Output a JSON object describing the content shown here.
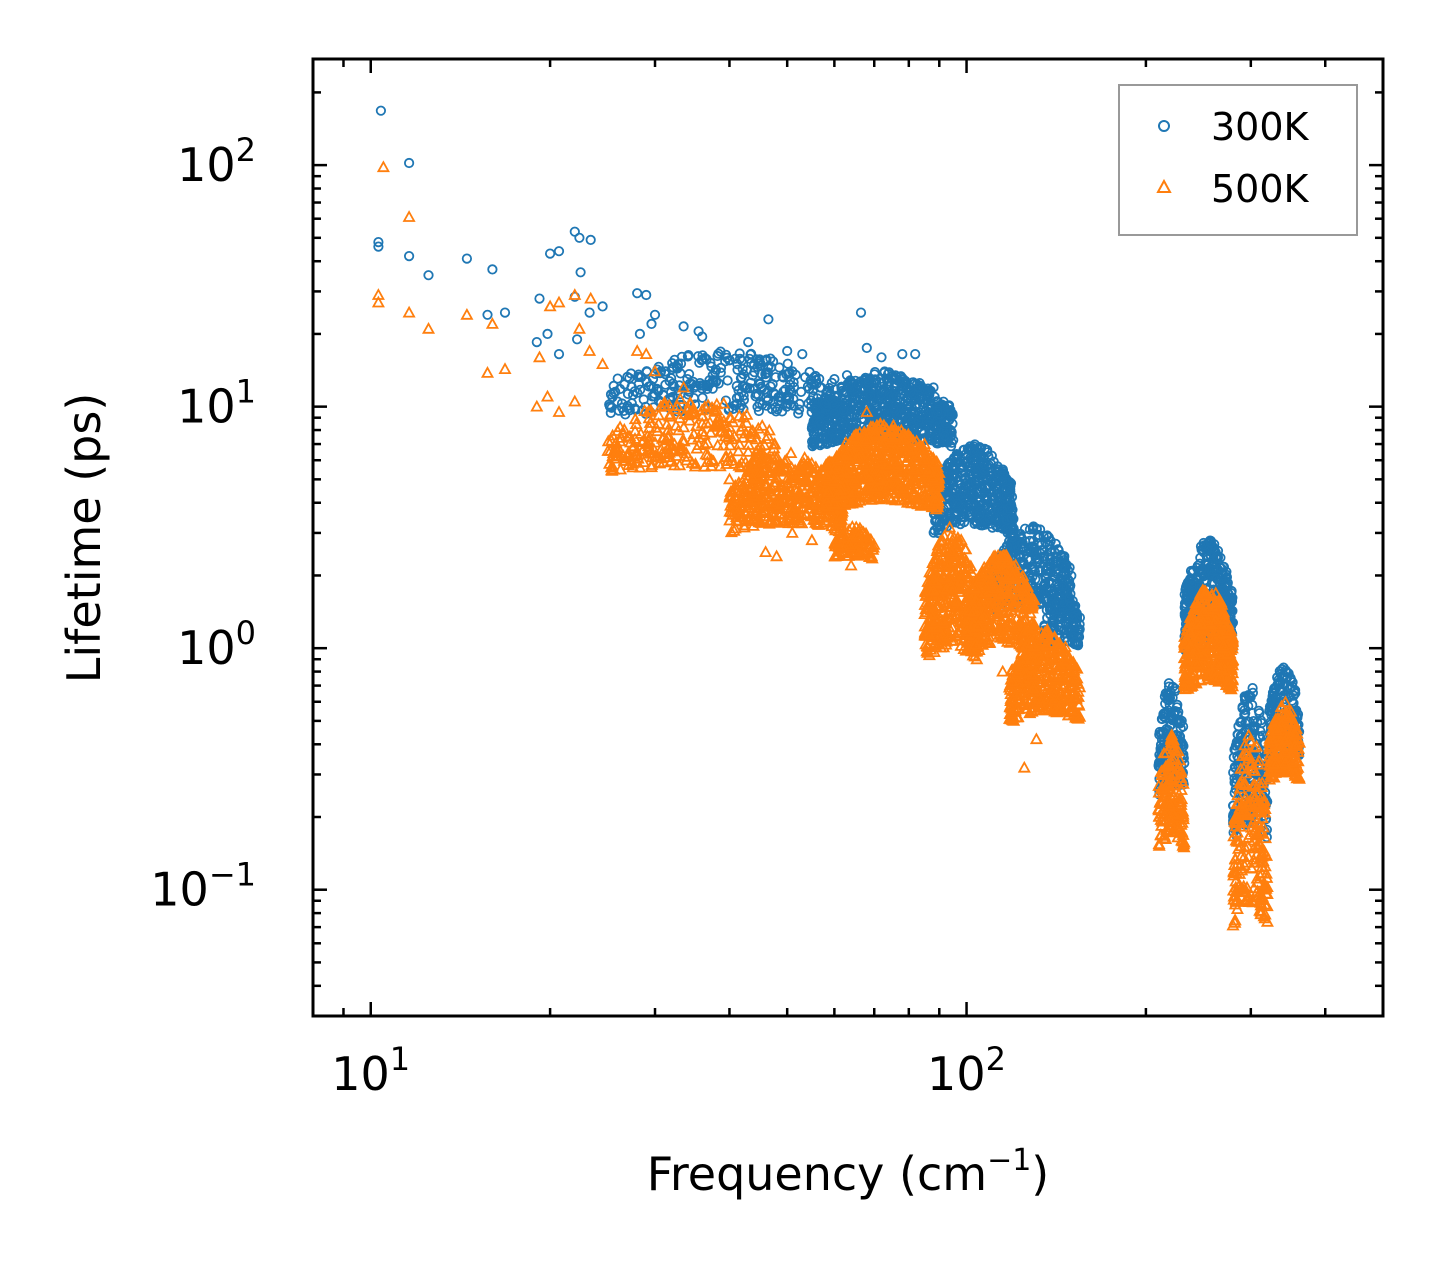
{
  "chart_data": {
    "type": "scatter",
    "title": "",
    "xlabel": "Frequency (cm",
    "xlabel_sup": "−1",
    "xlabel_end": ")",
    "ylabel": "Lifetime (ps)",
    "xscale": "log",
    "yscale": "log",
    "xlim": [
      8,
      500
    ],
    "ylim": [
      0.03,
      275
    ],
    "x_ticks": [
      {
        "base": "10",
        "exp": "1"
      },
      {
        "base": "10",
        "exp": "2"
      }
    ],
    "y_ticks": [
      {
        "base": "10",
        "exp": "−1"
      },
      {
        "base": "10",
        "exp": "0"
      },
      {
        "base": "10",
        "exp": "1"
      },
      {
        "base": "10",
        "exp": "2"
      }
    ],
    "legend_position": "top-right",
    "series": [
      {
        "name": "300K",
        "marker": "circle",
        "color": "#1f77b4",
        "points": [
          [
            10.3,
            48
          ],
          [
            10.3,
            46
          ],
          [
            10.4,
            168
          ],
          [
            11.6,
            102
          ],
          [
            11.6,
            42
          ],
          [
            12.5,
            35
          ],
          [
            14.5,
            41
          ],
          [
            15.7,
            24
          ],
          [
            16.0,
            37
          ],
          [
            16.8,
            24.5
          ],
          [
            19.0,
            18.5
          ],
          [
            19.2,
            28
          ],
          [
            19.8,
            20
          ],
          [
            20.0,
            43
          ],
          [
            20.7,
            44
          ],
          [
            20.7,
            16.5
          ],
          [
            22.0,
            28.5
          ],
          [
            22.0,
            53
          ],
          [
            22.4,
            50
          ],
          [
            22.5,
            36
          ],
          [
            22.2,
            19
          ],
          [
            23.4,
            49
          ],
          [
            23.3,
            24.5
          ],
          [
            24.5,
            26
          ],
          [
            28.0,
            29.5
          ],
          [
            28.3,
            20
          ],
          [
            29.0,
            29
          ],
          [
            29.6,
            22
          ],
          [
            30.0,
            24
          ],
          [
            33.5,
            21.5
          ],
          [
            34.0,
            13
          ],
          [
            35.5,
            20.5
          ],
          [
            36.0,
            19.5
          ],
          [
            37.5,
            13.5
          ],
          [
            43.0,
            18.5
          ],
          [
            44.0,
            15
          ],
          [
            46.5,
            23
          ],
          [
            50.0,
            17
          ],
          [
            51.0,
            14
          ],
          [
            53.0,
            16.5
          ],
          [
            57.0,
            12
          ],
          [
            60.0,
            13
          ],
          [
            63.0,
            13.5
          ],
          [
            66.5,
            24.5
          ],
          [
            68.0,
            17.5
          ],
          [
            72.0,
            16
          ],
          [
            75.0,
            13
          ],
          [
            78.0,
            16.5
          ],
          [
            82.0,
            16.5
          ],
          [
            88.0,
            12
          ]
        ],
        "clusters": [
          {
            "x": [
              25,
              60
            ],
            "y": [
              8,
              17
            ],
            "n": 320
          },
          {
            "x": [
              55,
              95
            ],
            "y": [
              6,
              14
            ],
            "n": 750
          },
          {
            "x": [
              88,
              120
            ],
            "y": [
              2.5,
              7
            ],
            "n": 500
          },
          {
            "x": [
              110,
              150
            ],
            "y": [
              1.2,
              3.2
            ],
            "n": 380
          },
          {
            "x": [
              135,
              155
            ],
            "y": [
              0.9,
              1.8
            ],
            "n": 160
          },
          {
            "x": [
              210,
              232
            ],
            "y": [
              0.2,
              0.75
            ],
            "n": 160
          },
          {
            "x": [
              232,
              280
            ],
            "y": [
              0.8,
              2.8
            ],
            "n": 450
          },
          {
            "x": [
              280,
              320
            ],
            "y": [
              0.12,
              0.7
            ],
            "n": 220
          },
          {
            "x": [
              322,
              362
            ],
            "y": [
              0.3,
              0.85
            ],
            "n": 200
          }
        ]
      },
      {
        "name": "500K",
        "marker": "triangle",
        "color": "#ff7f0e",
        "points": [
          [
            10.3,
            29
          ],
          [
            10.3,
            27
          ],
          [
            10.5,
            98
          ],
          [
            11.6,
            61
          ],
          [
            11.6,
            24.5
          ],
          [
            12.5,
            21
          ],
          [
            14.5,
            24
          ],
          [
            15.7,
            13.8
          ],
          [
            16.0,
            22
          ],
          [
            16.8,
            14.3
          ],
          [
            19.0,
            10
          ],
          [
            19.2,
            16
          ],
          [
            19.8,
            11
          ],
          [
            20.0,
            26
          ],
          [
            20.7,
            27
          ],
          [
            20.7,
            9.5
          ],
          [
            22.0,
            10.5
          ],
          [
            22.0,
            29
          ],
          [
            22.4,
            21
          ],
          [
            23.4,
            28
          ],
          [
            23.3,
            17
          ],
          [
            24.5,
            15
          ],
          [
            28.0,
            17
          ],
          [
            29.0,
            16.5
          ],
          [
            30.0,
            14
          ],
          [
            33.5,
            12
          ],
          [
            36.0,
            8.5
          ],
          [
            40.0,
            5
          ],
          [
            43.0,
            6.5
          ],
          [
            46.0,
            2.5
          ],
          [
            48.0,
            2.4
          ],
          [
            51.0,
            3
          ],
          [
            55.0,
            2.8
          ],
          [
            60.0,
            3.5
          ],
          [
            64.0,
            2.2
          ],
          [
            68.0,
            9.5
          ],
          [
            75.0,
            8
          ],
          [
            85.0,
            7
          ],
          [
            100.0,
            1.2
          ],
          [
            115.0,
            0.8
          ],
          [
            120.0,
            0.5
          ],
          [
            125.0,
            0.32
          ],
          [
            131.0,
            0.42
          ]
        ],
        "clusters": [
          {
            "x": [
              25,
              48
            ],
            "y": [
              4.5,
              11
            ],
            "n": 280
          },
          {
            "x": [
              40,
              62
            ],
            "y": [
              2.6,
              6.5
            ],
            "n": 450
          },
          {
            "x": [
              58,
              90
            ],
            "y": [
              3.2,
              8.5
            ],
            "n": 700
          },
          {
            "x": [
              60,
              70
            ],
            "y": [
              2.2,
              3.2
            ],
            "n": 100
          },
          {
            "x": [
              85,
              105
            ],
            "y": [
              0.7,
              3.2
            ],
            "n": 420
          },
          {
            "x": [
              100,
              130
            ],
            "y": [
              0.8,
              2.5
            ],
            "n": 420
          },
          {
            "x": [
              118,
              155
            ],
            "y": [
              0.42,
              1.2
            ],
            "n": 400
          },
          {
            "x": [
              210,
              232
            ],
            "y": [
              0.12,
              0.45
            ],
            "n": 160
          },
          {
            "x": [
              232,
              280
            ],
            "y": [
              0.55,
              1.8
            ],
            "n": 450
          },
          {
            "x": [
              280,
              320
            ],
            "y": [
              0.05,
              0.45
            ],
            "n": 220
          },
          {
            "x": [
              322,
              362
            ],
            "y": [
              0.24,
              0.6
            ],
            "n": 200
          }
        ]
      }
    ]
  }
}
